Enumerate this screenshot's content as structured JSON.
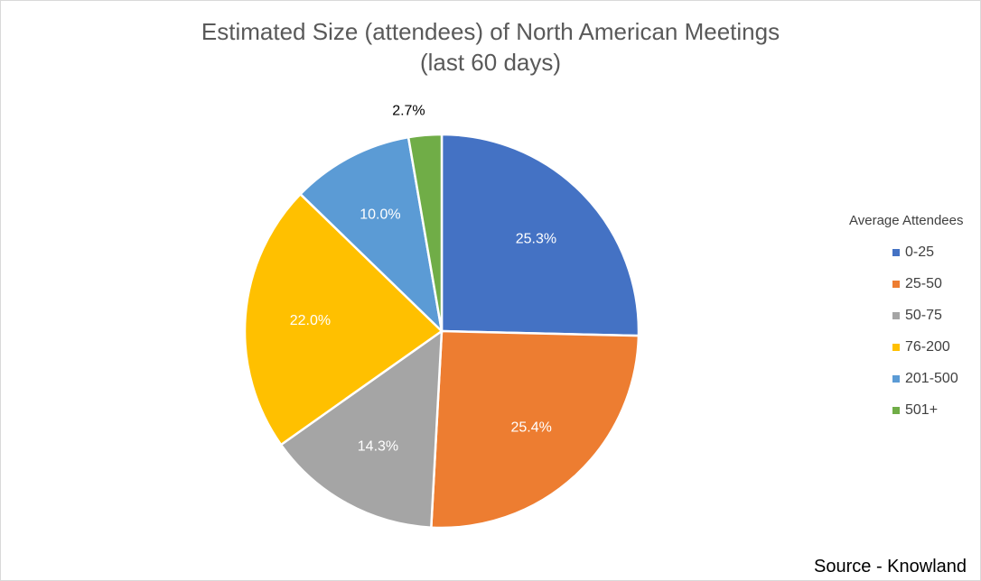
{
  "chart_data": {
    "type": "pie",
    "title": "Estimated Size (attendees) of North American Meetings",
    "subtitle": "(last 60 days)",
    "legend_title": "Average Attendees",
    "legend_position": "right",
    "categories": [
      "0-25",
      "25-50",
      "50-75",
      "76-200",
      "201-500",
      "501+"
    ],
    "values": [
      25.3,
      25.4,
      14.3,
      22.0,
      10.0,
      2.7
    ],
    "labels": [
      "25.3%",
      "25.4%",
      "14.3%",
      "22.0%",
      "10.0%",
      "2.7%"
    ],
    "colors": [
      "#4472c4",
      "#ed7d31",
      "#a5a5a5",
      "#ffc000",
      "#5b9bd5",
      "#70ad47"
    ],
    "label_colors": [
      "#ffffff",
      "#ffffff",
      "#ffffff",
      "#ffffff",
      "#ffffff",
      "#000000"
    ]
  },
  "footer": {
    "source": "Source - Knowland"
  }
}
